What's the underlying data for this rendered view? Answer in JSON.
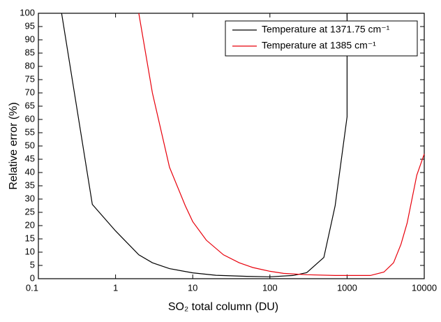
{
  "chart_data": {
    "type": "line",
    "x_label": "SO₂ total column (DU)",
    "y_label": "Relative error (%)",
    "xscale": "log",
    "xlim": [
      0.1,
      10000
    ],
    "xticks": [
      0.1,
      1,
      10,
      100,
      1000,
      10000
    ],
    "ylim": [
      0,
      100
    ],
    "yticks": [
      0,
      5,
      10,
      15,
      20,
      25,
      30,
      35,
      40,
      45,
      50,
      55,
      60,
      65,
      70,
      75,
      80,
      85,
      90,
      95,
      100
    ],
    "legend": "top-right",
    "series": [
      {
        "name": "Temperature at 1371.75 cm⁻¹",
        "color": "#000000",
        "x": [
          0.2,
          0.5,
          1,
          2,
          3,
          5,
          10,
          20,
          50,
          100,
          200,
          300,
          500,
          700,
          1000,
          1000
        ],
        "values": [
          100,
          28,
          18,
          9,
          6,
          3.8,
          2.2,
          1.3,
          0.9,
          0.7,
          1.2,
          2.3,
          8,
          27.5,
          61,
          100
        ]
      },
      {
        "name": "Temperature at 1385 cm⁻¹",
        "color": "#e8000b",
        "x": [
          2,
          3,
          5,
          8,
          10,
          15,
          25,
          40,
          60,
          100,
          150,
          300,
          700,
          2000,
          3000,
          4000,
          5000,
          6000,
          8000,
          10000
        ],
        "values": [
          100,
          70,
          42,
          27.5,
          21.5,
          14.5,
          9,
          6,
          4.2,
          2.8,
          2,
          1.5,
          1.2,
          1.2,
          2.5,
          6,
          13,
          21,
          39,
          47
        ]
      }
    ]
  }
}
